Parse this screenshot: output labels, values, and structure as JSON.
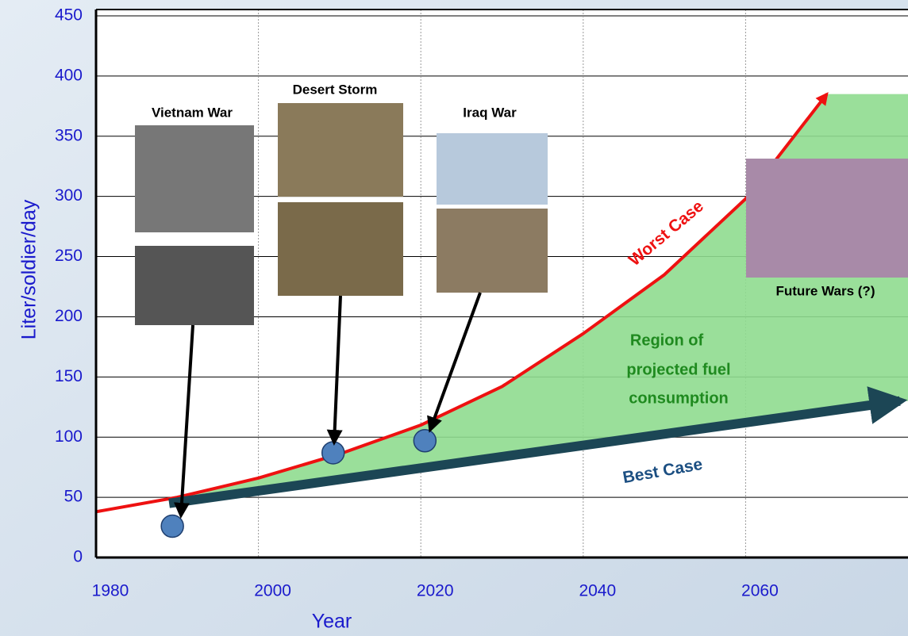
{
  "chart_data": {
    "type": "line",
    "ylabel": "Liter/soldier/day",
    "xlabel": "Year",
    "xlim": [
      1980,
      2080
    ],
    "xticks": [
      1980,
      2000,
      2020,
      2040,
      2060
    ],
    "ylim": [
      0,
      450
    ],
    "yticks": [
      0,
      50,
      100,
      150,
      200,
      250,
      300,
      350,
      400,
      450
    ],
    "grid": true,
    "series": [
      {
        "name": "Worst Case",
        "color": "#ee1111",
        "x": [
          1980,
          1990,
          2000,
          2010,
          2020,
          2030,
          2040,
          2050,
          2060,
          2070
        ],
        "values": [
          38,
          50,
          66,
          86,
          110,
          142,
          186,
          235,
          298,
          385
        ]
      },
      {
        "name": "Best Case",
        "color": "#1c4655",
        "x": [
          1989,
          2079
        ],
        "values": [
          45,
          130
        ]
      }
    ],
    "points": {
      "color": "#4f81bd",
      "x": [
        1989.4,
        2009.2,
        2020.5
      ],
      "values": [
        26,
        87,
        97
      ]
    },
    "annotations": [
      "Vietnam War",
      "Desert Storm",
      "Iraq War",
      "Future Wars (?)"
    ],
    "region_label": [
      "Region of",
      "projected fuel",
      "consumption"
    ]
  }
}
